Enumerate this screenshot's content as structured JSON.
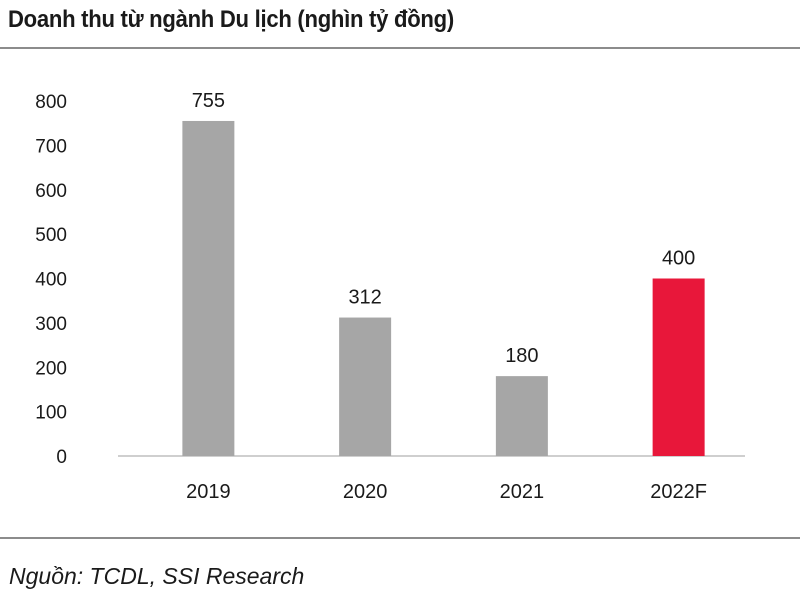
{
  "title": "Doanh thu từ ngành Du lịch (nghìn tỷ đồng)",
  "source": "Nguồn: TCDL, SSI Research",
  "chart_data": {
    "type": "bar",
    "title": "Doanh thu từ ngành Du lịch (nghìn tỷ đồng)",
    "xlabel": "",
    "ylabel": "",
    "categories": [
      "2019",
      "2020",
      "2021",
      "2022F"
    ],
    "values": [
      755,
      312,
      180,
      400
    ],
    "data_labels": [
      "755",
      "312",
      "180",
      "400"
    ],
    "bar_colors": [
      "#a6a6a6",
      "#a6a6a6",
      "#a6a6a6",
      "#e8173a"
    ],
    "ylim": [
      0,
      800
    ],
    "yticks": [
      0,
      100,
      200,
      300,
      400,
      500,
      600,
      700,
      800
    ],
    "grid": false,
    "legend": "none"
  }
}
